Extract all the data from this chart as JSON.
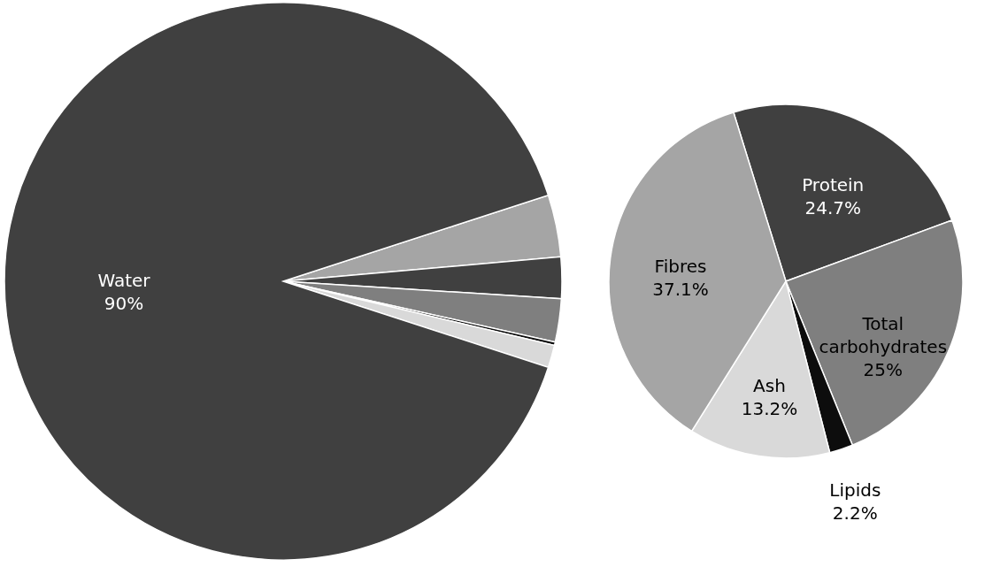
{
  "chart_data": [
    {
      "type": "pie",
      "categories": [
        "Water",
        null,
        null,
        null,
        null,
        null
      ],
      "values": [
        90,
        3.6,
        2.4,
        2.5,
        0.2,
        1.3
      ],
      "colors": [
        "#404040",
        "#a5a5a5",
        "#404040",
        "#7f7f7f",
        "#0d0d0d",
        "#d9d9d9"
      ],
      "value_labels": [
        "90%",
        null,
        null,
        null,
        null,
        null
      ]
    },
    {
      "type": "pie",
      "categories": [
        "Protein",
        "Total carbohydrates",
        "Lipids",
        "Ash",
        "Fibres"
      ],
      "values": [
        24.7,
        25,
        2.2,
        13.2,
        37.1
      ],
      "colors": [
        "#404040",
        "#7f7f7f",
        "#0d0d0d",
        "#d9d9d9",
        "#a5a5a5"
      ],
      "value_labels": [
        "24.7%",
        "25%",
        "2.2%",
        "13.2%",
        "37.1%"
      ]
    }
  ]
}
